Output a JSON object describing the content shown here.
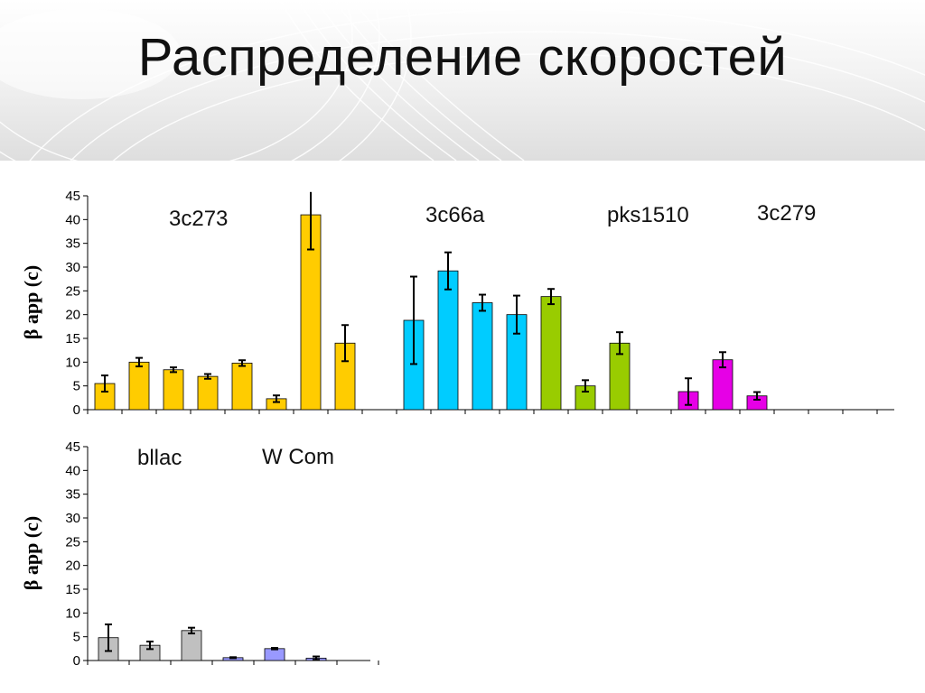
{
  "title": "Распределение скоростей",
  "colors": {
    "gold": "#FFCC00",
    "cyan": "#00CCFF",
    "green": "#99CC00",
    "magenta": "#E600E6",
    "gray": "#C0C0C0",
    "lavender": "#9999FF"
  },
  "chart_data": [
    {
      "type": "bar",
      "ylabel": "β app (c)",
      "ylim": [
        0,
        45
      ],
      "yticks": [
        0,
        5,
        10,
        15,
        20,
        25,
        30,
        35,
        40,
        45
      ],
      "groups": [
        {
          "label": "3c273",
          "color": "gold",
          "values": [
            5.5,
            10,
            8.4,
            7,
            9.8,
            2.3,
            41,
            14
          ],
          "errors": [
            1.7,
            0.9,
            0.5,
            0.5,
            0.6,
            0.7,
            7.3,
            3.8
          ]
        },
        {
          "label": "3c66a",
          "color": "cyan",
          "values": [
            18.8,
            29.2,
            22.5,
            20
          ],
          "errors": [
            9.2,
            3.9,
            1.7,
            4
          ]
        },
        {
          "label": "pks1510",
          "color": "green",
          "values": [
            23.8,
            5,
            14
          ],
          "errors": [
            1.6,
            1.2,
            2.3
          ]
        },
        {
          "label": "3c279",
          "color": "magenta",
          "values": [
            3.8,
            10.5,
            2.9
          ],
          "errors": [
            2.8,
            1.6,
            0.8
          ]
        }
      ]
    },
    {
      "type": "bar",
      "ylabel": "β app (c)",
      "ylim": [
        0,
        45
      ],
      "yticks": [
        0,
        5,
        10,
        15,
        20,
        25,
        30,
        35,
        40,
        45
      ],
      "groups": [
        {
          "label": "bllac",
          "color": "gray",
          "values": [
            4.8,
            3.2,
            6.3
          ],
          "errors": [
            2.8,
            0.8,
            0.6
          ]
        },
        {
          "label": "W Com",
          "color": "lavender",
          "values": [
            0.6,
            2.5,
            0.5
          ],
          "errors": [
            0.1,
            0.15,
            0.35
          ]
        }
      ]
    }
  ]
}
